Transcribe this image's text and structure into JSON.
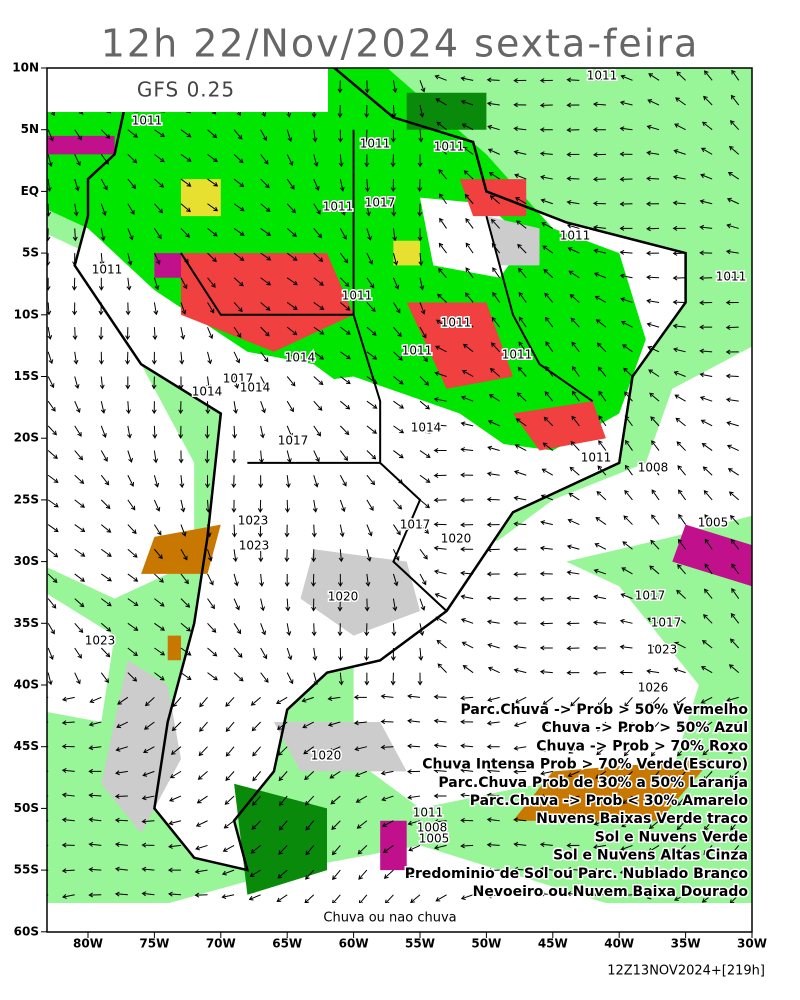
{
  "header": {
    "title": "12h 22/Nov/2024 sexta-feira",
    "model": "GFS 0.25"
  },
  "map": {
    "lat_ticks": [
      {
        "value": 10,
        "label": "10N"
      },
      {
        "value": 5,
        "label": "5N"
      },
      {
        "value": 0,
        "label": "EQ"
      },
      {
        "value": -5,
        "label": "5S"
      },
      {
        "value": -10,
        "label": "10S"
      },
      {
        "value": -15,
        "label": "15S"
      },
      {
        "value": -20,
        "label": "20S"
      },
      {
        "value": -25,
        "label": "25S"
      },
      {
        "value": -30,
        "label": "30S"
      },
      {
        "value": -35,
        "label": "35S"
      },
      {
        "value": -40,
        "label": "40S"
      },
      {
        "value": -45,
        "label": "45S"
      },
      {
        "value": -50,
        "label": "50S"
      },
      {
        "value": -55,
        "label": "55S"
      },
      {
        "value": -60,
        "label": "60S"
      }
    ],
    "lon_ticks": [
      {
        "value": -80,
        "label": "80W"
      },
      {
        "value": -75,
        "label": "75W"
      },
      {
        "value": -70,
        "label": "70W"
      },
      {
        "value": -65,
        "label": "65W"
      },
      {
        "value": -60,
        "label": "60W"
      },
      {
        "value": -55,
        "label": "55W"
      },
      {
        "value": -50,
        "label": "50W"
      },
      {
        "value": -45,
        "label": "45W"
      },
      {
        "value": -40,
        "label": "40W"
      },
      {
        "value": -35,
        "label": "35W"
      },
      {
        "value": -30,
        "label": "30W"
      }
    ],
    "isobar_labels": [
      "1011",
      "1011",
      "1011",
      "1011",
      "1011",
      "1017",
      "1011",
      "1011",
      "1011",
      "1011",
      "1011",
      "1011",
      "1014",
      "1014",
      "1011",
      "1017",
      "1014",
      "1017",
      "1014",
      "1011",
      "1008",
      "1005",
      "1017",
      "1020",
      "1023",
      "1023",
      "1020",
      "1017",
      "1017",
      "1023",
      "1026",
      "1020",
      "1023",
      "1011",
      "1008",
      "1005"
    ],
    "legend": [
      "Parc.Chuva -> Prob > 50% Vermelho",
      "Chuva -> Prob > 50% Azul",
      "Chuva -> Prob > 70% Roxo",
      "Chuva Intensa Prob > 70% Verde(Escuro)",
      "Parc.Chuva Prob de 30% a 50% Laranja",
      "Parc.Chuva -> Prob < 30% Amarelo",
      "Nuvens Baixas Verde traco",
      "Sol e Nuvens Verde",
      "Sol e Nuvens Altas Cinza",
      "Predominio de Sol ou Parc. Nublado Branco",
      "Nevoeiro ou Nuvem Baixa Dourado"
    ],
    "caption": "Chuva ou nao chuva"
  },
  "footer": {
    "run": "12Z13NOV2024+[219h]"
  }
}
